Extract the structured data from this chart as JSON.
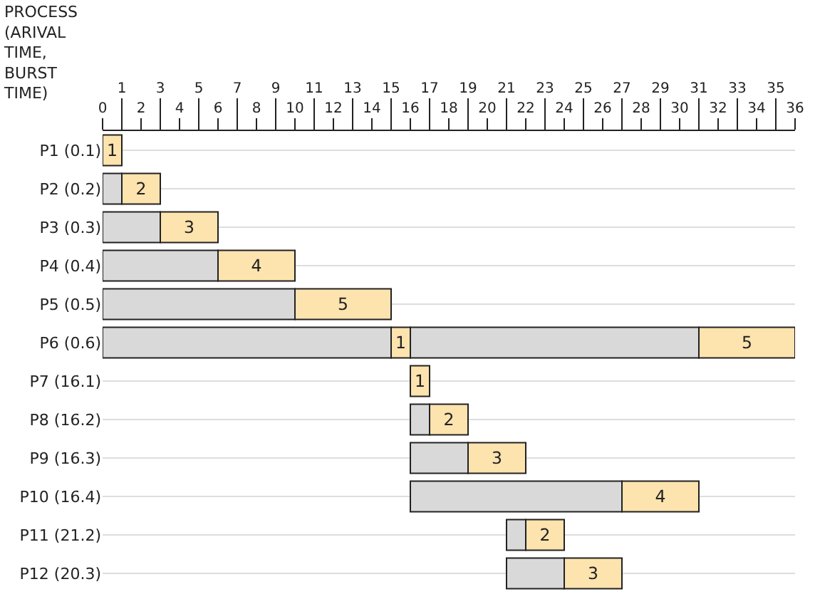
{
  "chart_data": {
    "type": "bar",
    "orientation": "horizontal",
    "ylabel": "PROCESS (ARIVAL TIME, BURST TIME)",
    "categories": [
      "P1 (0.1)",
      "P2 (0.2)",
      "P3 (0.3)",
      "P4 (0.4)",
      "P5 (0.5)",
      "P6 (0.6)",
      "P7 (16.1)",
      "P8 (16.2)",
      "P9 (16.3)",
      "P10 (16.4)",
      "P11 (21.2)",
      "P12 (20.3)"
    ],
    "series": [
      {
        "color": "#d9d9d9",
        "base": [
          null,
          0,
          0,
          0,
          0,
          0,
          null,
          16,
          16,
          16,
          21,
          21
        ],
        "values": [
          null,
          1,
          3,
          6,
          10,
          15,
          null,
          1,
          3,
          11,
          1,
          3
        ]
      },
      {
        "color": "#fde3ae",
        "base": [
          0,
          1,
          3,
          6,
          10,
          15,
          16,
          17,
          19,
          27,
          22,
          24
        ],
        "values": [
          1,
          2,
          3,
          4,
          5,
          1,
          1,
          2,
          3,
          4,
          2,
          3
        ],
        "value_labels": [
          "1",
          "2",
          "3",
          "4",
          "5",
          "1",
          "1",
          "2",
          "3",
          "4",
          "2",
          "3"
        ]
      },
      {
        "color": "#d9d9d9",
        "base": [
          null,
          null,
          null,
          null,
          null,
          16,
          null,
          null,
          null,
          null,
          null,
          null
        ],
        "values": [
          null,
          null,
          null,
          null,
          null,
          15,
          null,
          null,
          null,
          null,
          null,
          null
        ]
      },
      {
        "color": "#fde3ae",
        "base": [
          null,
          null,
          null,
          null,
          null,
          31,
          null,
          null,
          null,
          null,
          null,
          null
        ],
        "values": [
          null,
          null,
          null,
          null,
          null,
          5,
          null,
          null,
          null,
          null,
          null,
          null
        ],
        "value_labels": [
          null,
          null,
          null,
          null,
          null,
          "5",
          null,
          null,
          null,
          null,
          null,
          null
        ]
      }
    ],
    "xlim": [
      0,
      36
    ],
    "xticks": [
      0,
      {
        "value": 1,
        "label": null
      },
      2,
      {
        "value": 3,
        "label": null
      },
      4,
      {
        "value": 5,
        "label": null
      },
      6,
      {
        "value": 7,
        "label": null
      },
      8,
      {
        "value": 9,
        "label": null
      },
      10,
      {
        "value": 11,
        "label": null
      },
      12,
      {
        "value": 13,
        "label": null
      },
      14,
      {
        "value": 15,
        "label": null
      },
      16,
      {
        "value": 17,
        "label": null
      },
      18,
      {
        "value": 19,
        "label": null
      },
      20,
      {
        "value": 21,
        "label": null
      },
      22,
      {
        "value": 23,
        "label": null
      },
      24,
      {
        "value": 25,
        "label": null
      },
      26,
      {
        "value": 27,
        "label": null
      },
      28,
      {
        "value": 29,
        "label": null
      },
      30,
      {
        "value": 31,
        "label": null
      },
      32,
      {
        "value": 33,
        "label": null
      },
      34,
      {
        "value": 35,
        "label": null
      },
      36
    ],
    "x2lim": [
      0,
      36
    ],
    "x2ticks": [
      1,
      3,
      5,
      7,
      9,
      11,
      13,
      15,
      17,
      19,
      21,
      23,
      25,
      27,
      29,
      31,
      33,
      35
    ],
    "grid": "y"
  }
}
